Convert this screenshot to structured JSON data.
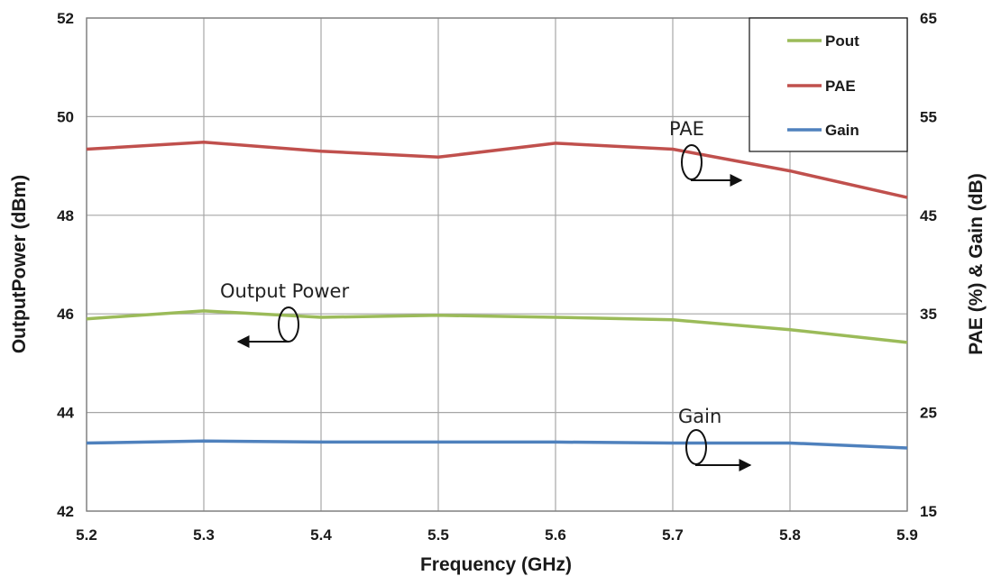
{
  "chart_data": {
    "type": "line",
    "x": [
      5.2,
      5.3,
      5.4,
      5.5,
      5.6,
      5.7,
      5.8,
      5.9
    ],
    "xticks": [
      "5.2",
      "5.3",
      "5.4",
      "5.5",
      "5.6",
      "5.7",
      "5.8",
      "5.9"
    ],
    "xlim": [
      5.2,
      5.9
    ],
    "xlabel": "Frequency (GHz)",
    "ylabel_left": "OutputPower (dBm)",
    "ylabel_right": "PAE (%) & Gain (dB)",
    "ylim_left": [
      42,
      52
    ],
    "ylim_right": [
      15,
      65
    ],
    "yticks_left": [
      "42",
      "44",
      "46",
      "48",
      "50",
      "52"
    ],
    "yticks_right": [
      "15",
      "25",
      "35",
      "45",
      "55",
      "65"
    ],
    "grid": true,
    "legend_position": "top-right",
    "series": [
      {
        "name": "Pout",
        "axis": "left",
        "color": "#9bbb59",
        "values": [
          45.9,
          46.06,
          45.93,
          45.97,
          45.93,
          45.88,
          45.68,
          45.42
        ]
      },
      {
        "name": "PAE",
        "axis": "right",
        "color": "#c0504d",
        "values": [
          51.7,
          52.4,
          51.5,
          50.9,
          52.3,
          51.7,
          49.5,
          46.8
        ]
      },
      {
        "name": "Gain",
        "axis": "right",
        "color": "#4f81bd",
        "values": [
          21.9,
          22.1,
          22.0,
          22.0,
          22.0,
          21.9,
          21.9,
          21.4
        ]
      }
    ],
    "annotations": [
      {
        "text": "PAE",
        "direction": "right"
      },
      {
        "text": "Output Power",
        "direction": "left"
      },
      {
        "text": "Gain",
        "direction": "right"
      }
    ]
  }
}
